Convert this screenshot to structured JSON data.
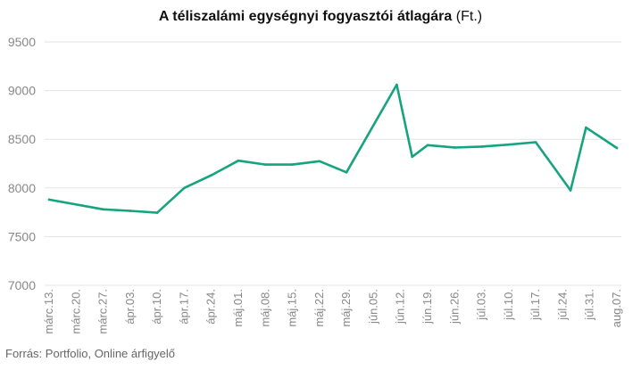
{
  "chart_data": {
    "type": "line",
    "title": "A téliszalámi egységnyi fogyasztói átlagára",
    "title_unit": "(Ft.)",
    "source": "Forrás: Portfolio, Online árfigyelő",
    "x_tick_labels": [
      "márc.13.",
      "márc.20.",
      "márc.27.",
      "ápr.03.",
      "ápr.10.",
      "ápr.17.",
      "ápr.24.",
      "máj.01.",
      "máj.08.",
      "máj.15.",
      "máj.22.",
      "máj.29.",
      "jún.05.",
      "jún.12.",
      "jún.19.",
      "jún.26.",
      "júl.03.",
      "júl.10.",
      "júl.17.",
      "júl.24.",
      "júl.31.",
      "aug.07."
    ],
    "ylim": [
      7000,
      9500
    ],
    "y_ticks": [
      7000,
      7500,
      8000,
      8500,
      9000,
      9500
    ],
    "grid": true,
    "series": [
      {
        "color": "#16a37f",
        "points": [
          {
            "x": "2022-03-13",
            "y": 7880
          },
          {
            "x": "2022-03-27",
            "y": 7780
          },
          {
            "x": "2022-04-03",
            "y": 7765
          },
          {
            "x": "2022-04-10",
            "y": 7745
          },
          {
            "x": "2022-04-17",
            "y": 8000
          },
          {
            "x": "2022-04-24",
            "y": 8130
          },
          {
            "x": "2022-05-01",
            "y": 8280
          },
          {
            "x": "2022-05-08",
            "y": 8240
          },
          {
            "x": "2022-05-15",
            "y": 8240
          },
          {
            "x": "2022-05-22",
            "y": 8275
          },
          {
            "x": "2022-05-29",
            "y": 8160
          },
          {
            "x": "2022-06-11",
            "y": 9060
          },
          {
            "x": "2022-06-15",
            "y": 8320
          },
          {
            "x": "2022-06-19",
            "y": 8440
          },
          {
            "x": "2022-06-26",
            "y": 8415
          },
          {
            "x": "2022-07-03",
            "y": 8425
          },
          {
            "x": "2022-07-10",
            "y": 8445
          },
          {
            "x": "2022-07-17",
            "y": 8470
          },
          {
            "x": "2022-07-26",
            "y": 7975
          },
          {
            "x": "2022-07-30",
            "y": 8620
          },
          {
            "x": "2022-08-07",
            "y": 8410
          }
        ]
      }
    ]
  }
}
